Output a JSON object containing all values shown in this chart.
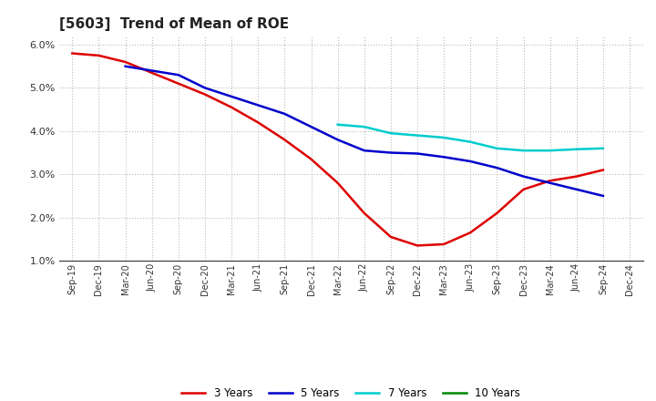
{
  "title": "[5603]  Trend of Mean of ROE",
  "x_labels": [
    "Sep-19",
    "Dec-19",
    "Mar-20",
    "Jun-20",
    "Sep-20",
    "Dec-20",
    "Mar-21",
    "Jun-21",
    "Sep-21",
    "Dec-21",
    "Mar-22",
    "Jun-22",
    "Sep-22",
    "Dec-22",
    "Mar-23",
    "Jun-23",
    "Sep-23",
    "Dec-23",
    "Mar-24",
    "Jun-24",
    "Sep-24",
    "Dec-24"
  ],
  "y3": [
    5.8,
    5.75,
    5.6,
    5.35,
    5.1,
    4.85,
    4.55,
    4.2,
    3.8,
    3.35,
    2.8,
    2.1,
    1.55,
    1.35,
    1.38,
    1.65,
    2.1,
    2.65,
    2.85,
    2.95,
    3.1,
    null
  ],
  "y5": [
    null,
    null,
    5.5,
    5.4,
    5.3,
    5.0,
    4.8,
    4.6,
    4.4,
    4.1,
    3.8,
    3.55,
    3.5,
    3.48,
    3.4,
    3.3,
    3.15,
    2.95,
    2.8,
    2.65,
    2.5,
    null
  ],
  "y7": [
    null,
    null,
    null,
    null,
    null,
    null,
    null,
    null,
    null,
    null,
    4.15,
    4.1,
    3.95,
    3.9,
    3.85,
    3.75,
    3.6,
    3.55,
    3.55,
    3.58,
    3.6,
    null
  ],
  "y10": [],
  "color_3y": "#dd0000",
  "color_5y": "#0000cc",
  "color_7y": "#00cccc",
  "color_10y": "#008800",
  "ylim_min": 1.0,
  "ylim_max": 6.2,
  "legend_labels": [
    "3 Years",
    "5 Years",
    "7 Years",
    "10 Years"
  ],
  "bg_color": "#ffffff",
  "grid_color": "#bbbbbb"
}
